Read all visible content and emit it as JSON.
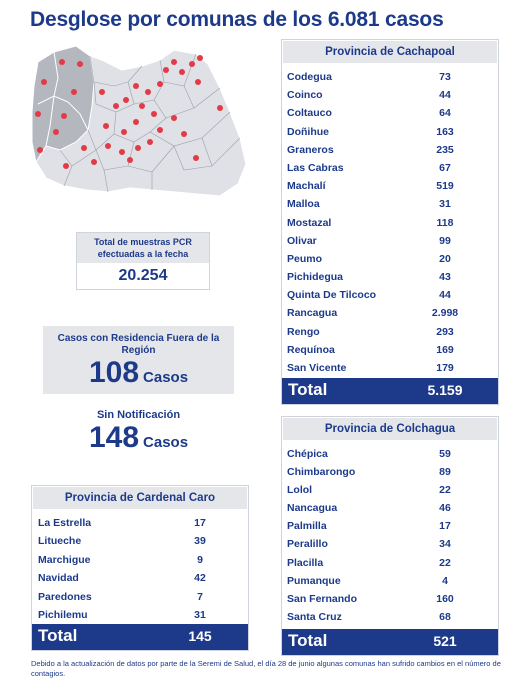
{
  "title": "Desglose por comunas de los 6.081 casos",
  "pcr": {
    "label": "Total de muestras PCR efectuadas a la fecha",
    "value": "20.254"
  },
  "residencia": {
    "label": "Casos con Residencia Fuera de la Región",
    "value": "108",
    "unit": "Casos"
  },
  "sin_notificacion": {
    "label": "Sin Notificación",
    "value": "148",
    "unit": "Casos"
  },
  "cachapoal": {
    "title": "Provincia de Cachapoal",
    "rows": [
      {
        "name": "Codegua",
        "value": "73"
      },
      {
        "name": "Coinco",
        "value": "44"
      },
      {
        "name": "Coltauco",
        "value": "64"
      },
      {
        "name": "Doñihue",
        "value": "163"
      },
      {
        "name": "Graneros",
        "value": "235"
      },
      {
        "name": "Las Cabras",
        "value": "67"
      },
      {
        "name": "Machalí",
        "value": "519"
      },
      {
        "name": "Malloa",
        "value": "31"
      },
      {
        "name": "Mostazal",
        "value": "118"
      },
      {
        "name": "Olivar",
        "value": "99"
      },
      {
        "name": "Peumo",
        "value": "20"
      },
      {
        "name": "Pichidegua",
        "value": "43"
      },
      {
        "name": "Quinta De Tilcoco",
        "value": "44"
      },
      {
        "name": "Rancagua",
        "value": "2.998"
      },
      {
        "name": "Rengo",
        "value": "293"
      },
      {
        "name": "Requínoa",
        "value": "169"
      },
      {
        "name": "San Vicente",
        "value": "179"
      }
    ],
    "total_label": "Total",
    "total_value": "5.159"
  },
  "colchagua": {
    "title": "Provincia de Colchagua",
    "rows": [
      {
        "name": "Chépica",
        "value": "59"
      },
      {
        "name": "Chimbarongo",
        "value": "89"
      },
      {
        "name": "Lolol",
        "value": "22"
      },
      {
        "name": "Nancagua",
        "value": "46"
      },
      {
        "name": "Palmilla",
        "value": "17"
      },
      {
        "name": "Peralillo",
        "value": "34"
      },
      {
        "name": "Placilla",
        "value": "22"
      },
      {
        "name": "Pumanque",
        "value": "4"
      },
      {
        "name": "San Fernando",
        "value": "160"
      },
      {
        "name": "Santa Cruz",
        "value": "68"
      }
    ],
    "total_label": "Total",
    "total_value": "521"
  },
  "cardenal_caro": {
    "title": "Provincia de Cardenal Caro",
    "rows": [
      {
        "name": "La Estrella",
        "value": "17"
      },
      {
        "name": "Litueche",
        "value": "39"
      },
      {
        "name": "Marchigue",
        "value": "9"
      },
      {
        "name": "Navidad",
        "value": "42"
      },
      {
        "name": "Paredones",
        "value": "7"
      },
      {
        "name": "Pichilemu",
        "value": "31"
      }
    ],
    "total_label": "Total",
    "total_value": "145"
  },
  "footnote": "Debido a la actualización de datos por parte de la Seremi de Salud, el día 28 de junio algunas comunas han sufrido cambios en el número de contagios.",
  "colors": {
    "primary": "#1d3a8a",
    "panel_head": "#e4e6ea",
    "pin": "#e23a46",
    "map_dark": "#a9acb3",
    "map_light": "#dfe1e6"
  }
}
